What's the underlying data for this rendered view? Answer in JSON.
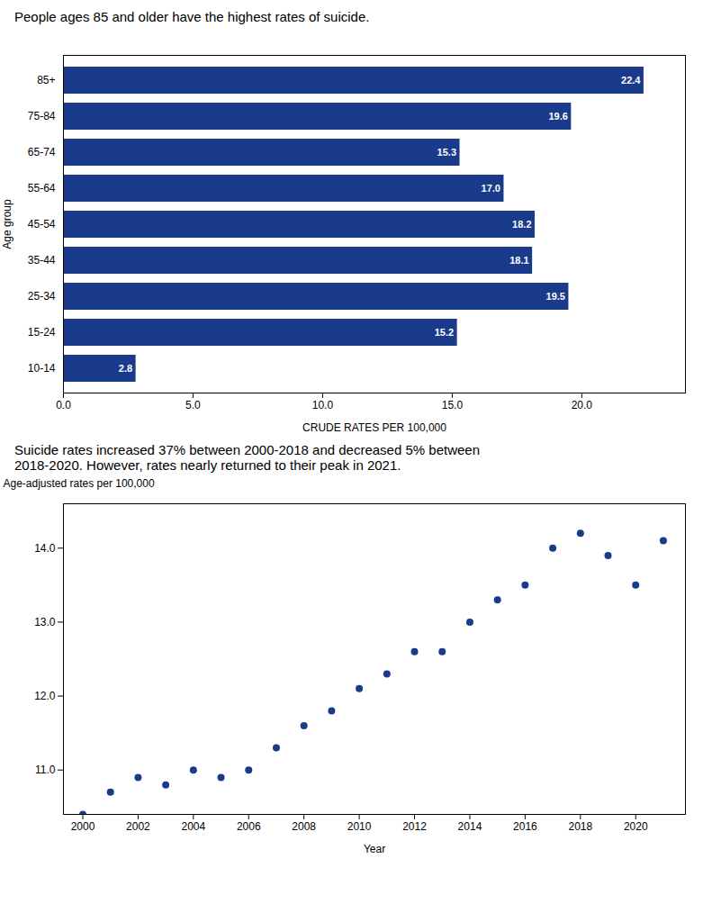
{
  "chart_data": [
    {
      "type": "bar",
      "orientation": "horizontal",
      "title": "People ages 85 and older have the highest rates of suicide.",
      "categories": [
        "85+",
        "75-84",
        "65-74",
        "55-64",
        "45-54",
        "35-44",
        "25-34",
        "15-24",
        "10-14"
      ],
      "values": [
        22.4,
        19.6,
        15.3,
        17.0,
        18.2,
        18.1,
        19.5,
        15.2,
        2.8
      ],
      "value_labels": [
        "22.4",
        "19.6",
        "15.3",
        "17.0",
        "18.2",
        "18.1",
        "19.5",
        "15.2",
        "2.8"
      ],
      "data_labels": true,
      "color": "#1a3a8c",
      "xlabel": "CRUDE RATES PER 100,000",
      "ylabel": "Age group",
      "xlim": [
        0,
        24
      ],
      "xticks": [
        {
          "value": 0,
          "label": "0.0"
        },
        {
          "value": 5,
          "label": "5.0"
        },
        {
          "value": 10,
          "label": "10.0"
        },
        {
          "value": 15,
          "label": "15.0"
        },
        {
          "value": 20,
          "label": "20.0"
        }
      ],
      "grid": false
    },
    {
      "type": "scatter",
      "title": "Suicide rates increased 37% between 2000-2018 and decreased 5% between\n2018-2020. However, rates nearly returned to their peak in 2021.",
      "x": [
        2000,
        2001,
        2002,
        2003,
        2004,
        2005,
        2006,
        2007,
        2008,
        2009,
        2010,
        2011,
        2012,
        2013,
        2014,
        2015,
        2016,
        2017,
        2018,
        2019,
        2020,
        2021
      ],
      "values": [
        10.4,
        10.7,
        10.9,
        10.8,
        11.0,
        10.9,
        11.0,
        11.3,
        11.6,
        11.8,
        12.1,
        12.3,
        12.6,
        12.6,
        13.0,
        13.3,
        13.5,
        14.0,
        14.2,
        13.9,
        13.5,
        14.1
      ],
      "color": "#1a3a8c",
      "xlabel": "Year",
      "ylabel": "Age-adjusted rates per 100,000",
      "xlim": [
        1999.3,
        2021.8
      ],
      "xticks": [
        2000,
        2002,
        2004,
        2006,
        2008,
        2010,
        2012,
        2014,
        2016,
        2018,
        2020
      ],
      "ylim": [
        10.4,
        14.6
      ],
      "yticks": [
        {
          "value": 11,
          "label": "11.0"
        },
        {
          "value": 12,
          "label": "12.0"
        },
        {
          "value": 13,
          "label": "13.0"
        },
        {
          "value": 14,
          "label": "14.0"
        }
      ],
      "grid": false
    }
  ]
}
